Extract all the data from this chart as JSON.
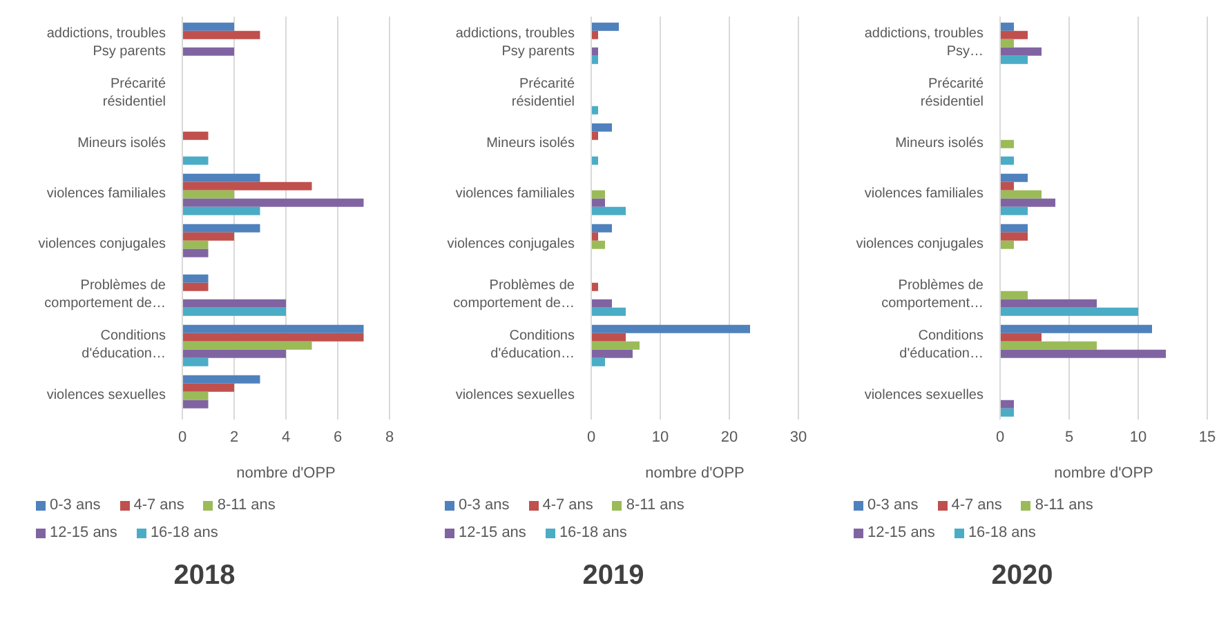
{
  "chart_data": [
    {
      "type": "bar",
      "orientation": "horizontal",
      "title": "2018",
      "xlabel": "nombre d'OPP",
      "categories": [
        "addictions, troubles Psy parents",
        "Précarité résidentiel",
        "Mineurs isolés",
        "violences familiales",
        "violences conjugales",
        "Problèmes de comportement de…",
        "Conditions d'éducation…",
        "violences sexuelles"
      ],
      "xlim": [
        0,
        8
      ],
      "xticks": [
        0,
        2,
        4,
        6,
        8
      ],
      "grid": "x",
      "legend": "bottom",
      "series": [
        {
          "name": "0-3 ans",
          "color": "#4f81bd",
          "values": [
            2,
            0,
            0,
            3,
            3,
            1,
            7,
            3
          ]
        },
        {
          "name": "4-7 ans",
          "color": "#c0504d",
          "values": [
            3,
            0,
            1,
            5,
            2,
            1,
            7,
            2
          ]
        },
        {
          "name": "8-11 ans",
          "color": "#9bbb59",
          "values": [
            0,
            0,
            0,
            2,
            1,
            0,
            5,
            1
          ]
        },
        {
          "name": "12-15 ans",
          "color": "#8064a2",
          "values": [
            2,
            0,
            0,
            7,
            1,
            4,
            4,
            1
          ]
        },
        {
          "name": "16-18 ans",
          "color": "#4bacc6",
          "values": [
            0,
            0,
            1,
            3,
            0,
            4,
            1,
            0
          ]
        }
      ]
    },
    {
      "type": "bar",
      "orientation": "horizontal",
      "title": "2019",
      "xlabel": "nombre d'OPP",
      "categories": [
        "addictions, troubles Psy parents",
        "Précarité résidentiel",
        "Mineurs isolés",
        "violences familiales",
        "violences conjugales",
        "Problèmes de comportement de…",
        "Conditions d'éducation…",
        "violences sexuelles"
      ],
      "xlim": [
        0,
        30
      ],
      "xticks": [
        0,
        10,
        20,
        30
      ],
      "grid": "x",
      "legend": "bottom",
      "series": [
        {
          "name": "0-3 ans",
          "color": "#4f81bd",
          "values": [
            4,
            0,
            3,
            0,
            3,
            0,
            23,
            0
          ]
        },
        {
          "name": "4-7 ans",
          "color": "#c0504d",
          "values": [
            1,
            0,
            1,
            0,
            1,
            1,
            5,
            0
          ]
        },
        {
          "name": "8-11 ans",
          "color": "#9bbb59",
          "values": [
            0,
            0,
            0,
            2,
            2,
            0,
            7,
            0
          ]
        },
        {
          "name": "12-15 ans",
          "color": "#8064a2",
          "values": [
            1,
            0,
            0,
            2,
            0,
            3,
            6,
            0
          ]
        },
        {
          "name": "16-18 ans",
          "color": "#4bacc6",
          "values": [
            1,
            1,
            1,
            5,
            0,
            5,
            2,
            0
          ]
        }
      ]
    },
    {
      "type": "bar",
      "orientation": "horizontal",
      "title": "2020",
      "xlabel": "nombre d'OPP",
      "categories": [
        "addictions, troubles Psy…",
        "Précarité résidentiel",
        "Mineurs isolés",
        "violences familiales",
        "violences conjugales",
        "Problèmes de comportement…",
        "Conditions d'éducation…",
        "violences sexuelles"
      ],
      "xlim": [
        0,
        15
      ],
      "xticks": [
        0,
        5,
        10,
        15
      ],
      "grid": "x",
      "legend": "bottom",
      "series": [
        {
          "name": "0-3 ans",
          "color": "#4f81bd",
          "values": [
            1,
            0,
            0,
            2,
            2,
            0,
            11,
            0
          ]
        },
        {
          "name": "4-7 ans",
          "color": "#c0504d",
          "values": [
            2,
            0,
            0,
            1,
            2,
            0,
            3,
            0
          ]
        },
        {
          "name": "8-11 ans",
          "color": "#9bbb59",
          "values": [
            1,
            0,
            1,
            3,
            1,
            2,
            7,
            0
          ]
        },
        {
          "name": "12-15 ans",
          "color": "#8064a2",
          "values": [
            3,
            0,
            0,
            4,
            0,
            7,
            12,
            1
          ]
        },
        {
          "name": "16-18 ans",
          "color": "#4bacc6",
          "values": [
            2,
            0,
            1,
            2,
            0,
            10,
            0,
            1
          ]
        }
      ]
    }
  ]
}
